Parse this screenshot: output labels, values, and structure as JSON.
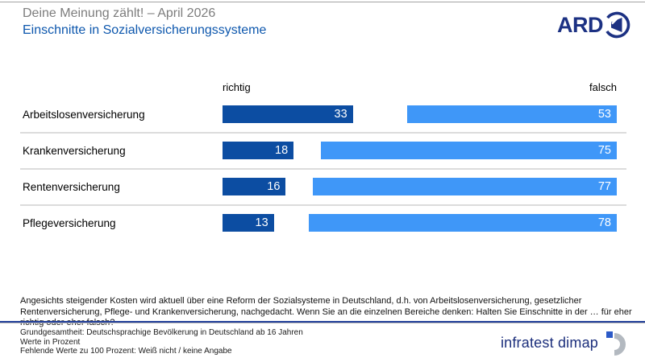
{
  "header": {
    "pretitle": "Deine Meinung zählt! – April 2026",
    "title": "Einschnitte in Sozialversicherungssysteme",
    "ard_logo_text": "ARD"
  },
  "chart_data": {
    "type": "bar",
    "orientation": "horizontal",
    "unit": "percent",
    "categories": [
      "Arbeitslosenversicherung",
      "Krankenversicherung",
      "Rentenversicherung",
      "Pflegeversicherung"
    ],
    "series": [
      {
        "name": "richtig",
        "color": "#0c4da2",
        "values": [
          33,
          18,
          16,
          13
        ]
      },
      {
        "name": "falsch",
        "color": "#3f97f8",
        "values": [
          53,
          75,
          77,
          78
        ]
      }
    ],
    "value_axis_max": 100,
    "value_labels_shown": true,
    "legend_position": "above-bars"
  },
  "question": {
    "text": "Angesichts steigender Kosten wird aktuell über eine Reform der Sozialsysteme in Deutschland, d.h. von Arbeitslosenversicherung, gesetzlicher Rentenversicherung, Pflege- und Krankenversicherung, nachgedacht. Wenn Sie an die einzelnen Bereiche denken: Halten Sie Einschnitte in der … für eher richtig oder eher falsch?"
  },
  "footer": {
    "lines": [
      "Grundgesamtheit: Deutschsprachige Bevölkerung in Deutschland ab 16 Jahren",
      "Werte in Prozent",
      "Fehlende Werte zu 100 Prozent: Weiß nicht / keine Angabe"
    ],
    "agency": "infratest dimap"
  },
  "colors": {
    "bar_dark_blue": "#0c4da2",
    "bar_light_blue": "#3f97f8",
    "title_blue": "#0d57ad",
    "pretitle_gray": "#7d7d7d",
    "ard_navy": "#1c3183",
    "rule_navy": "#23409a",
    "separator_gray": "#dcdcdc"
  }
}
